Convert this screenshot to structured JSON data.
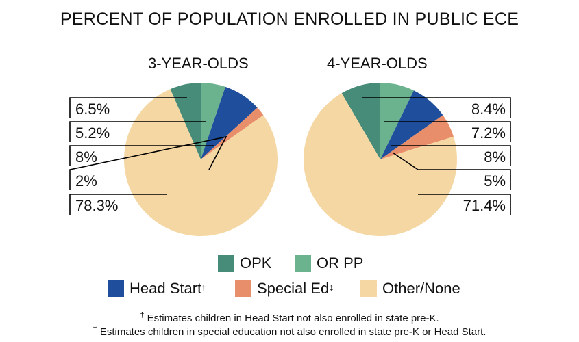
{
  "chart_data": {
    "type": "pie",
    "title": "PERCENT OF POPULATION ENROLLED IN PUBLIC ECE",
    "categories": [
      "OPK",
      "OR PP",
      "Head Start",
      "Special Ed",
      "Other/None"
    ],
    "colors": [
      "#468C78",
      "#6BB38E",
      "#1E4E9C",
      "#E98E6A",
      "#F5D7A3"
    ],
    "pies": [
      {
        "name": "3-YEAR-OLDS",
        "values": [
          6.5,
          5.2,
          8,
          2,
          78.3
        ],
        "labels": [
          "6.5%",
          "5.2%",
          "8%",
          "2%",
          "78.3%"
        ]
      },
      {
        "name": "4-YEAR-OLDS",
        "values": [
          8.4,
          7.2,
          8,
          5,
          71.4
        ],
        "labels": [
          "8.4%",
          "7.2%",
          "8%",
          "5%",
          "71.4%"
        ]
      }
    ],
    "legend": {
      "position": "bottom",
      "items": [
        {
          "label": "OPK",
          "mark": ""
        },
        {
          "label": "OR PP",
          "mark": ""
        },
        {
          "label": "Head Start",
          "mark": "†"
        },
        {
          "label": "Special Ed",
          "mark": "‡"
        },
        {
          "label": "Other/None",
          "mark": ""
        }
      ]
    },
    "footnotes": [
      {
        "mark": "†",
        "text": " Estimates children in Head Start not also enrolled in state pre-K."
      },
      {
        "mark": "‡",
        "text": " Estimates children in special education not also enrolled in state pre-K or Head Start."
      }
    ]
  }
}
